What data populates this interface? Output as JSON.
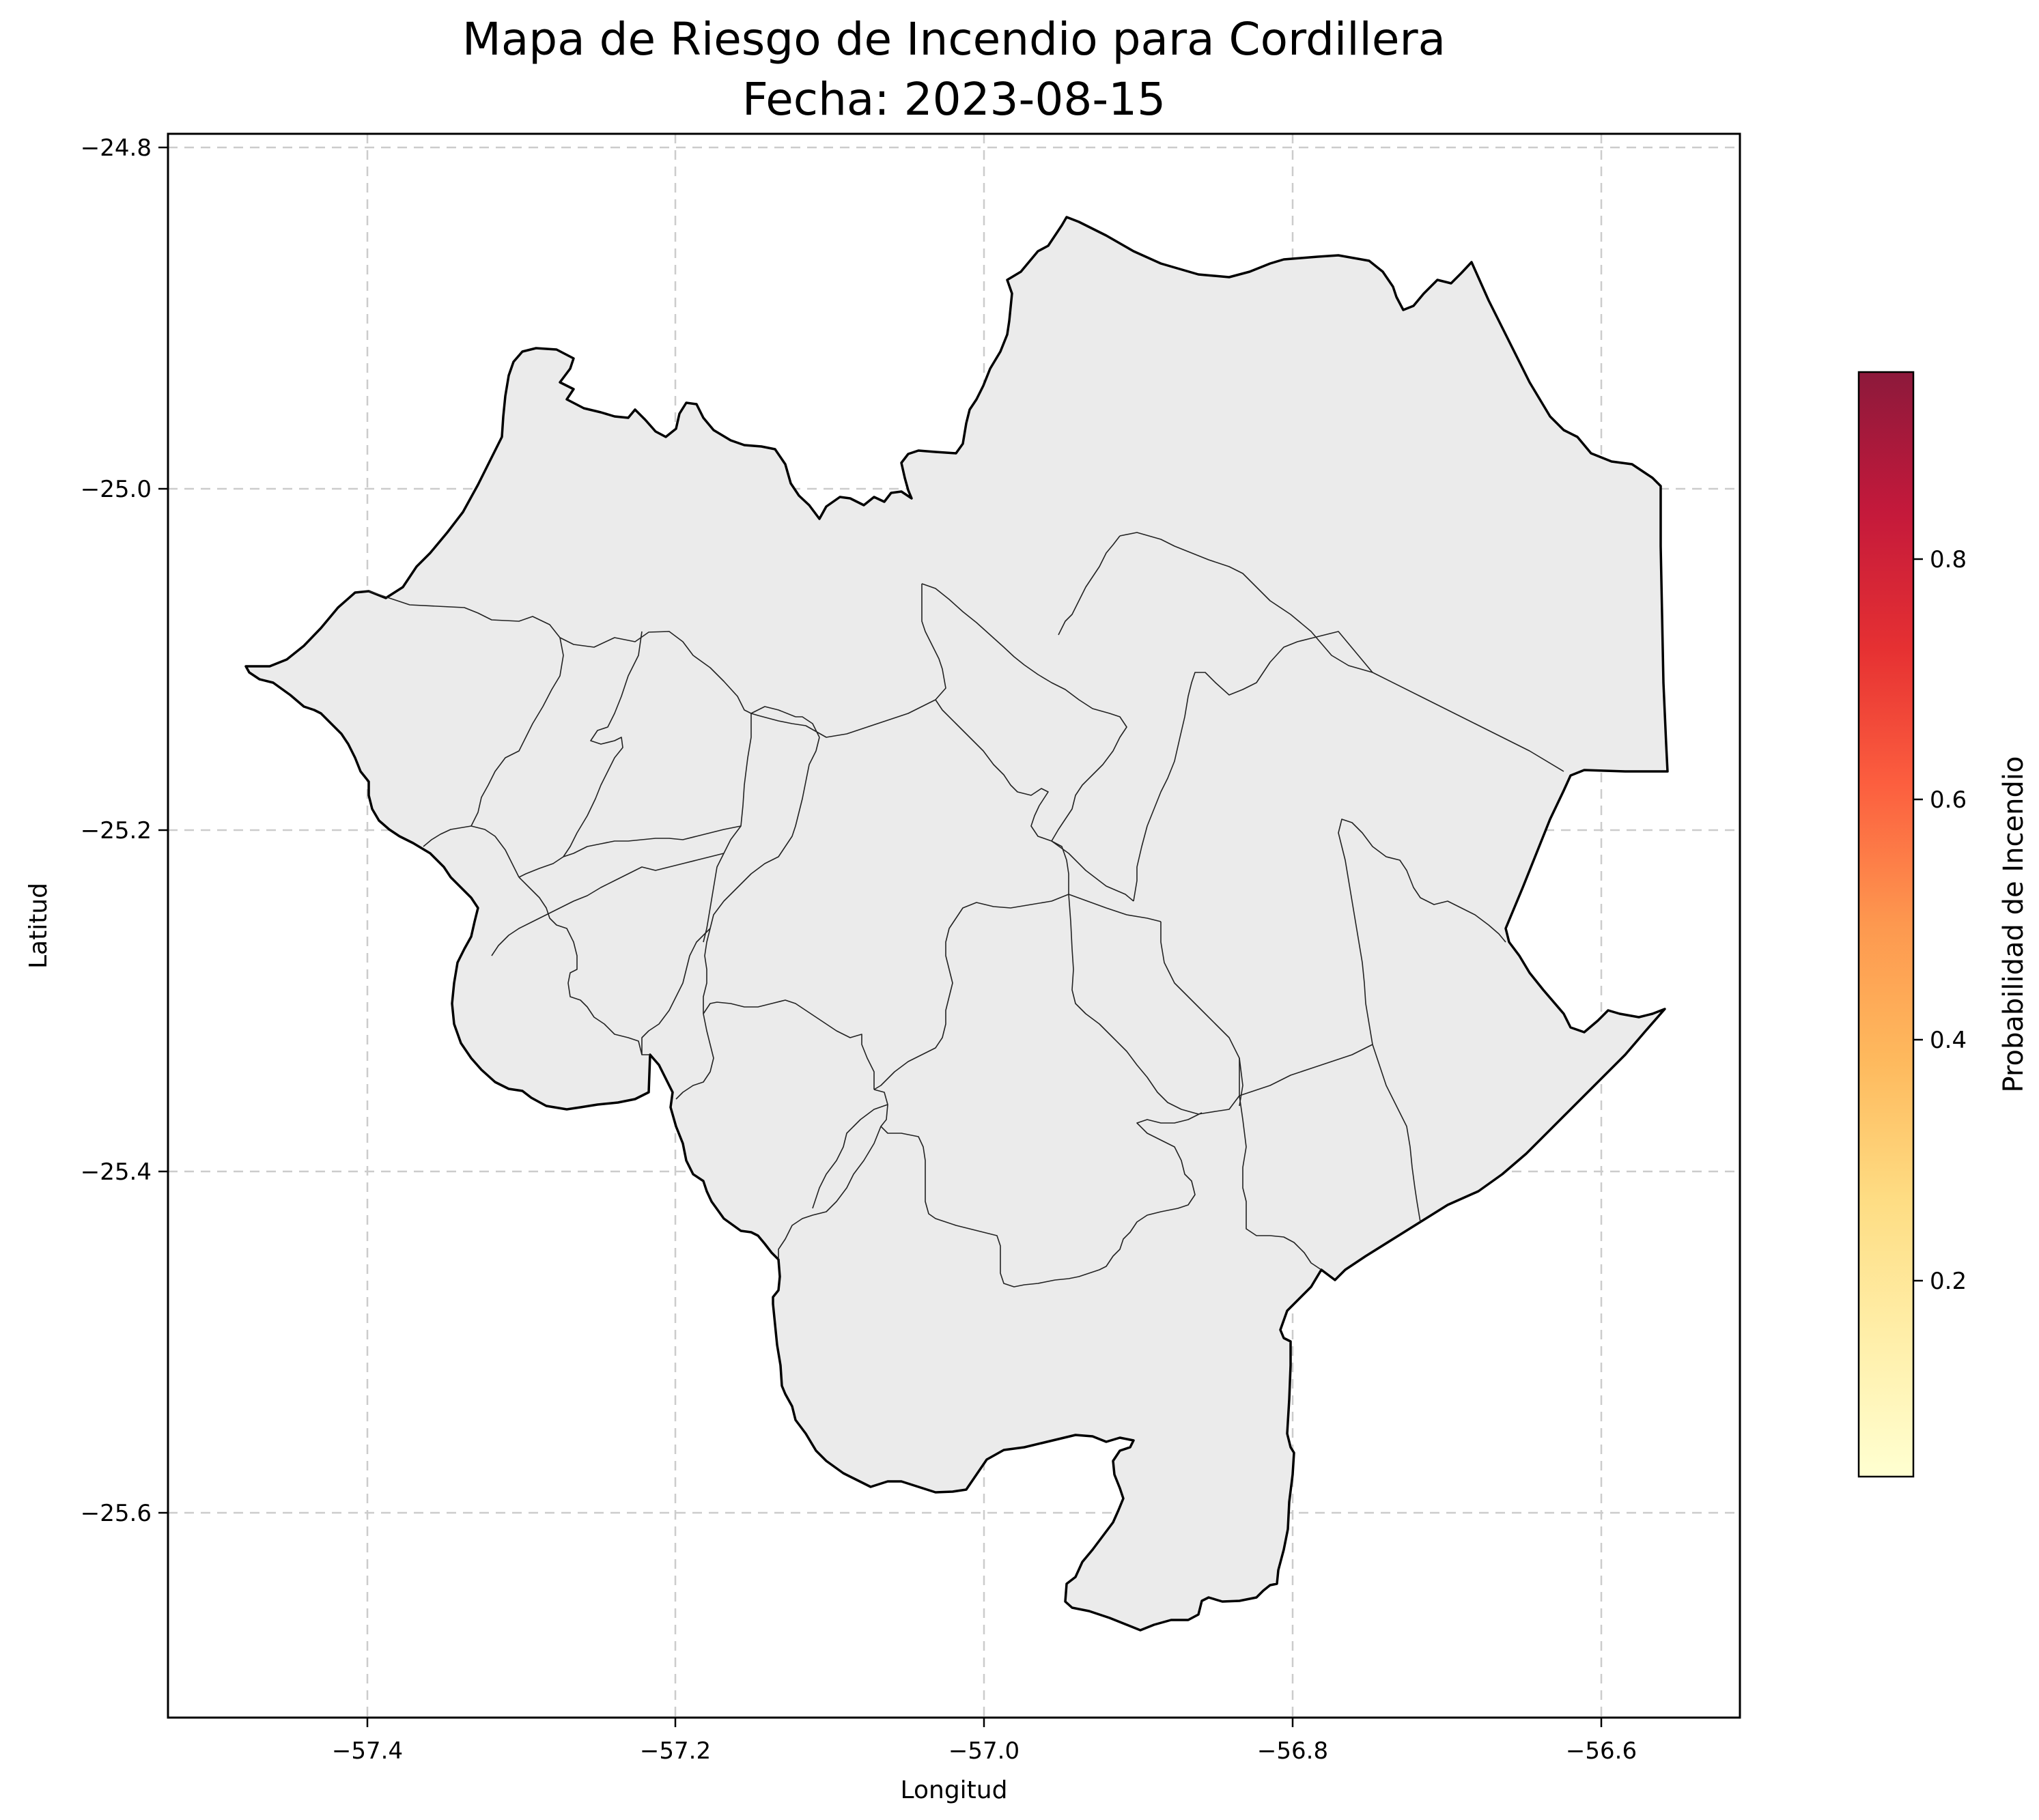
{
  "title_line1": "Mapa de Riesgo de Incendio para Cordillera",
  "title_line2": "Fecha: 2023-08-15",
  "xlabel": "Longitud",
  "ylabel": "Latitud",
  "x_ticks": [
    "−57.4",
    "−57.2",
    "−57.0",
    "−56.8",
    "−56.6"
  ],
  "y_ticks": [
    "−24.8",
    "−25.0",
    "−25.2",
    "−25.4",
    "−25.6"
  ],
  "colorbar": {
    "label": "Probabilidad de Incendio",
    "ticks": [
      "0.2",
      "0.4",
      "0.6",
      "0.8"
    ],
    "range": [
      0.03,
      0.95
    ],
    "colormap": "YlOrRd"
  },
  "map": {
    "fill_color": "#ebebeb",
    "edge_color": "#000000",
    "xlim": [
      -57.53,
      -56.51
    ],
    "ylim": [
      -25.72,
      -24.79
    ],
    "grid": true
  }
}
